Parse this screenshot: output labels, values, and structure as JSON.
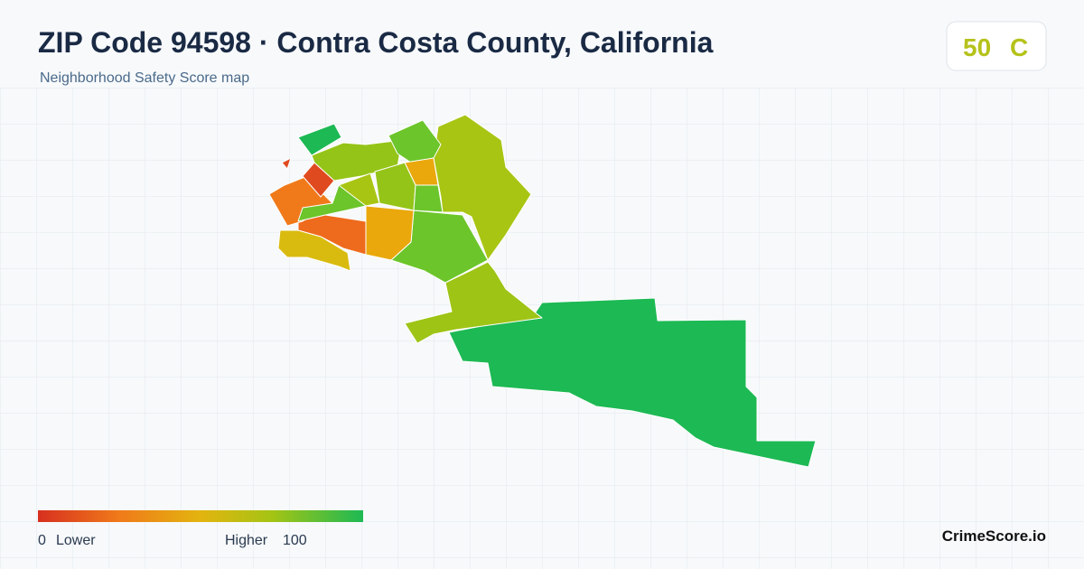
{
  "header": {
    "title": "ZIP Code 94598 · Contra Costa County, California",
    "subtitle": "Neighborhood Safety Score map"
  },
  "score": {
    "value": 50,
    "grade": "C"
  },
  "legend": {
    "min": 0,
    "min_label": "Lower",
    "max_label": "Higher",
    "max": 100
  },
  "brand": "CrimeScore.io"
}
